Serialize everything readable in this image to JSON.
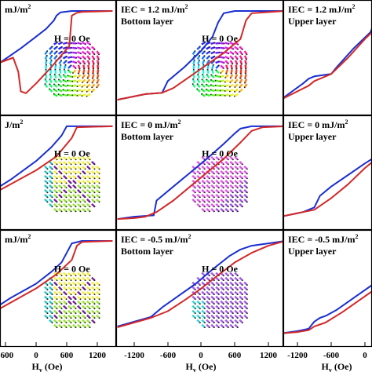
{
  "colors": {
    "series_a": "#1a2fd0",
    "series_b": "#d42828",
    "frame": "#000000",
    "tick_label": "#000000"
  },
  "chart_data": [
    {
      "type": "line",
      "row": 0,
      "col": 0,
      "label_line1": "mJ/m",
      "label_sup": "2",
      "label_line2": "",
      "field_label": "H = 0 Oe",
      "xlim": [
        -1500,
        1500
      ],
      "ylim": [
        -1.1,
        1.1
      ],
      "series": [
        {
          "color": "series_a",
          "points": [
            [
              -1500,
              -0.6
            ],
            [
              -1100,
              -0.35
            ],
            [
              -700,
              -0.1
            ],
            [
              -300,
              0.2
            ],
            [
              0,
              0.45
            ],
            [
              200,
              0.62
            ],
            [
              350,
              0.8
            ],
            [
              400,
              0.9
            ],
            [
              480,
              0.97
            ],
            [
              700,
              1.0
            ],
            [
              1500,
              1.0
            ]
          ]
        },
        {
          "color": "series_b",
          "points": [
            [
              -1500,
              -0.6
            ],
            [
              -1100,
              -0.35
            ],
            [
              -700,
              -0.1
            ],
            [
              -450,
              0.0
            ],
            [
              -350,
              -0.3
            ],
            [
              -300,
              -0.72
            ],
            [
              -200,
              -0.76
            ],
            [
              0,
              -0.55
            ],
            [
              300,
              -0.2
            ],
            [
              650,
              0.25
            ],
            [
              700,
              0.9
            ],
            [
              800,
              0.96
            ],
            [
              900,
              0.98
            ],
            [
              1500,
              1.0
            ]
          ]
        }
      ],
      "inset": "vortex"
    },
    {
      "type": "line",
      "row": 0,
      "col": 1,
      "label_line1": "IEC = 1.2 mJ/m",
      "label_sup": "2",
      "label_line2": "Bottom layer",
      "field_label": "H = 0 Oe",
      "xlim": [
        -1500,
        1500
      ],
      "ylim": [
        -1.1,
        1.1
      ],
      "series": [
        {
          "color": "series_a",
          "points": [
            [
              -1500,
              -0.9
            ],
            [
              -1000,
              -0.78
            ],
            [
              -700,
              -0.75
            ],
            [
              -600,
              -0.5
            ],
            [
              -300,
              -0.2
            ],
            [
              0,
              0.15
            ],
            [
              200,
              0.45
            ],
            [
              300,
              0.75
            ],
            [
              400,
              0.95
            ],
            [
              600,
              1.0
            ],
            [
              1500,
              1.0
            ]
          ]
        },
        {
          "color": "series_b",
          "points": [
            [
              -1500,
              -0.9
            ],
            [
              -1000,
              -0.78
            ],
            [
              -700,
              -0.75
            ],
            [
              -500,
              -0.65
            ],
            [
              -200,
              -0.4
            ],
            [
              100,
              -0.15
            ],
            [
              400,
              0.1
            ],
            [
              700,
              0.4
            ],
            [
              800,
              0.8
            ],
            [
              900,
              0.95
            ],
            [
              1500,
              1.0
            ]
          ]
        }
      ],
      "inset": "vortex"
    },
    {
      "type": "line",
      "row": 0,
      "col": 2,
      "label_line1": "IEC = 1.2 mJ/m",
      "label_sup": "2",
      "label_line2": "Upper layer",
      "field_label": "",
      "xlim": [
        -1500,
        1500
      ],
      "ylim": [
        -1.1,
        1.1
      ],
      "series": [
        {
          "color": "series_a",
          "points": [
            [
              -1500,
              -0.9
            ],
            [
              -1100,
              -0.55
            ],
            [
              -1000,
              -0.45
            ],
            [
              -900,
              -0.4
            ],
            [
              -600,
              -0.35
            ],
            [
              -500,
              -0.2
            ],
            [
              -200,
              0.2
            ],
            [
              100,
              0.55
            ],
            [
              200,
              0.85
            ],
            [
              300,
              0.95
            ],
            [
              500,
              1.0
            ],
            [
              1500,
              1.0
            ]
          ]
        },
        {
          "color": "series_b",
          "points": [
            [
              -1500,
              -0.9
            ],
            [
              -1000,
              -0.6
            ],
            [
              -900,
              -0.5
            ],
            [
              -600,
              -0.35
            ],
            [
              -300,
              0.0
            ],
            [
              0,
              0.4
            ],
            [
              300,
              0.75
            ],
            [
              700,
              0.9
            ],
            [
              1000,
              0.98
            ],
            [
              1500,
              1.0
            ]
          ]
        }
      ]
    },
    {
      "type": "line",
      "row": 1,
      "col": 0,
      "label_line1": "J/m",
      "label_sup": "2",
      "label_line2": "",
      "field_label": "H = 0 Oe",
      "xlim": [
        -1500,
        1500
      ],
      "ylim": [
        -1.1,
        1.1
      ],
      "series": [
        {
          "color": "series_a",
          "points": [
            [
              -1500,
              -0.8
            ],
            [
              -1000,
              -0.5
            ],
            [
              -500,
              -0.15
            ],
            [
              0,
              0.25
            ],
            [
              300,
              0.55
            ],
            [
              500,
              0.8
            ],
            [
              600,
              1.0
            ],
            [
              1500,
              1.0
            ]
          ]
        },
        {
          "color": "series_b",
          "points": [
            [
              -1500,
              -0.8
            ],
            [
              -1000,
              -0.55
            ],
            [
              -500,
              -0.25
            ],
            [
              0,
              0.05
            ],
            [
              400,
              0.35
            ],
            [
              700,
              0.75
            ],
            [
              800,
              0.98
            ],
            [
              1500,
              1.0
            ]
          ]
        }
      ],
      "inset": "cross"
    },
    {
      "type": "line",
      "row": 1,
      "col": 1,
      "label_line1": "IEC = 0 mJ/m",
      "label_sup": "2",
      "label_line2": "Bottom layer",
      "field_label": "H = 0 Oe",
      "xlim": [
        -1500,
        1500
      ],
      "ylim": [
        -1.1,
        1.1
      ],
      "series": [
        {
          "color": "series_a",
          "points": [
            [
              -1500,
              -1.0
            ],
            [
              -1200,
              -0.95
            ],
            [
              -850,
              -0.92
            ],
            [
              -800,
              -0.6
            ],
            [
              -500,
              -0.3
            ],
            [
              -200,
              0.0
            ],
            [
              100,
              0.3
            ],
            [
              400,
              0.62
            ],
            [
              600,
              0.85
            ],
            [
              700,
              0.95
            ],
            [
              900,
              1.0
            ],
            [
              1500,
              1.0
            ]
          ]
        },
        {
          "color": "series_b",
          "points": [
            [
              -1500,
              -1.0
            ],
            [
              -1200,
              -0.98
            ],
            [
              -1000,
              -0.95
            ],
            [
              -800,
              -0.85
            ],
            [
              -500,
              -0.6
            ],
            [
              -200,
              -0.3
            ],
            [
              100,
              0.0
            ],
            [
              400,
              0.3
            ],
            [
              700,
              0.65
            ],
            [
              900,
              0.9
            ],
            [
              1100,
              0.98
            ],
            [
              1500,
              1.0
            ]
          ]
        }
      ],
      "inset": "pink"
    },
    {
      "type": "line",
      "row": 1,
      "col": 2,
      "label_line1": "IEC = 0 mJ/m",
      "label_sup": "2",
      "label_line2": "Upper layer",
      "field_label": "",
      "xlim": [
        -1500,
        1500
      ],
      "ylim": [
        -1.1,
        1.1
      ],
      "series": [
        {
          "color": "series_a",
          "points": [
            [
              -1500,
              -0.95
            ],
            [
              -1100,
              -0.85
            ],
            [
              -900,
              -0.75
            ],
            [
              -800,
              -0.5
            ],
            [
              -600,
              -0.3
            ],
            [
              -300,
              -0.05
            ],
            [
              0,
              0.2
            ],
            [
              200,
              0.35
            ],
            [
              300,
              0.42
            ],
            [
              400,
              0.38
            ],
            [
              600,
              0.4
            ],
            [
              800,
              0.45
            ],
            [
              1000,
              0.5
            ]
          ]
        },
        {
          "color": "series_b",
          "points": [
            [
              -1500,
              -0.95
            ],
            [
              -1100,
              -0.85
            ],
            [
              -900,
              -0.8
            ],
            [
              -600,
              -0.55
            ],
            [
              -300,
              -0.25
            ],
            [
              0,
              0.1
            ],
            [
              200,
              0.3
            ],
            [
              300,
              0.4
            ],
            [
              400,
              0.32
            ],
            [
              500,
              0.3
            ],
            [
              600,
              0.33
            ],
            [
              800,
              0.42
            ],
            [
              1000,
              0.48
            ]
          ]
        }
      ]
    },
    {
      "type": "line",
      "row": 2,
      "col": 0,
      "label_line1": "mJ/m",
      "label_sup": "2",
      "label_line2": "",
      "field_label": "H = 0 Oe",
      "xlim": [
        -1500,
        1500
      ],
      "ylim": [
        -1.1,
        1.1
      ],
      "series": [
        {
          "color": "series_a",
          "points": [
            [
              -1500,
              -0.85
            ],
            [
              -1000,
              -0.55
            ],
            [
              -500,
              -0.2
            ],
            [
              0,
              0.1
            ],
            [
              300,
              0.35
            ],
            [
              500,
              0.55
            ],
            [
              600,
              0.75
            ],
            [
              700,
              0.95
            ],
            [
              900,
              1.0
            ],
            [
              1500,
              1.0
            ]
          ]
        },
        {
          "color": "series_b",
          "points": [
            [
              -1500,
              -0.85
            ],
            [
              -1000,
              -0.6
            ],
            [
              -500,
              -0.3
            ],
            [
              0,
              0.0
            ],
            [
              400,
              0.3
            ],
            [
              700,
              0.6
            ],
            [
              800,
              0.9
            ],
            [
              900,
              0.98
            ],
            [
              1500,
              1.0
            ]
          ]
        }
      ],
      "inset": "cross"
    },
    {
      "type": "line",
      "row": 2,
      "col": 1,
      "label_line1": "IEC = -0.5 mJ/m",
      "label_sup": "2",
      "label_line2": "Bottom layer",
      "field_label": "H = 0 Oe",
      "xlim": [
        -1500,
        1500
      ],
      "ylim": [
        -1.1,
        1.1
      ],
      "series": [
        {
          "color": "series_a",
          "points": [
            [
              -1500,
              -0.8
            ],
            [
              -1200,
              -0.7
            ],
            [
              -900,
              -0.6
            ],
            [
              -700,
              -0.4
            ],
            [
              -400,
              -0.15
            ],
            [
              -100,
              0.1
            ],
            [
              200,
              0.4
            ],
            [
              500,
              0.68
            ],
            [
              700,
              0.82
            ],
            [
              900,
              0.9
            ],
            [
              1200,
              0.95
            ],
            [
              1500,
              1.0
            ]
          ]
        },
        {
          "color": "series_b",
          "points": [
            [
              -1500,
              -0.82
            ],
            [
              -1200,
              -0.72
            ],
            [
              -900,
              -0.62
            ],
            [
              -600,
              -0.48
            ],
            [
              -300,
              -0.25
            ],
            [
              0,
              0.0
            ],
            [
              300,
              0.28
            ],
            [
              600,
              0.55
            ],
            [
              900,
              0.75
            ],
            [
              1200,
              0.9
            ],
            [
              1500,
              1.0
            ]
          ]
        }
      ],
      "inset": "purple"
    },
    {
      "type": "line",
      "row": 2,
      "col": 2,
      "label_line1": "IEC = -0.5 mJ/m",
      "label_sup": "2",
      "label_line2": "Upper layer",
      "field_label": "",
      "xlim": [
        -1500,
        1500
      ],
      "ylim": [
        -1.1,
        1.1
      ],
      "series": [
        {
          "color": "series_a",
          "points": [
            [
              -1500,
              -0.95
            ],
            [
              -1200,
              -0.9
            ],
            [
              -1000,
              -0.85
            ],
            [
              -900,
              -0.7
            ],
            [
              -800,
              -0.62
            ],
            [
              -700,
              -0.58
            ],
            [
              -500,
              -0.45
            ],
            [
              -200,
              -0.2
            ],
            [
              100,
              0.05
            ],
            [
              400,
              0.3
            ],
            [
              700,
              0.5
            ],
            [
              1000,
              0.7
            ]
          ]
        },
        {
          "color": "series_b",
          "points": [
            [
              -1500,
              -0.95
            ],
            [
              -1200,
              -0.92
            ],
            [
              -1000,
              -0.88
            ],
            [
              -900,
              -0.8
            ],
            [
              -700,
              -0.72
            ],
            [
              -400,
              -0.5
            ],
            [
              -100,
              -0.25
            ],
            [
              200,
              0.0
            ],
            [
              500,
              0.28
            ],
            [
              800,
              0.55
            ],
            [
              1000,
              0.72
            ]
          ]
        }
      ]
    }
  ],
  "x_axis": {
    "ticks_panel_0": [
      "-600",
      "0",
      "600",
      "1200"
    ],
    "ticks_panel_1": [
      "-1200",
      "-600",
      "0",
      "600",
      "1200"
    ],
    "ticks_panel_2": [
      "-1200",
      "-600",
      "0"
    ],
    "xlabel_main": "H",
    "xlabel_sub": "y",
    "xlabel_unit": " (Oe)"
  }
}
